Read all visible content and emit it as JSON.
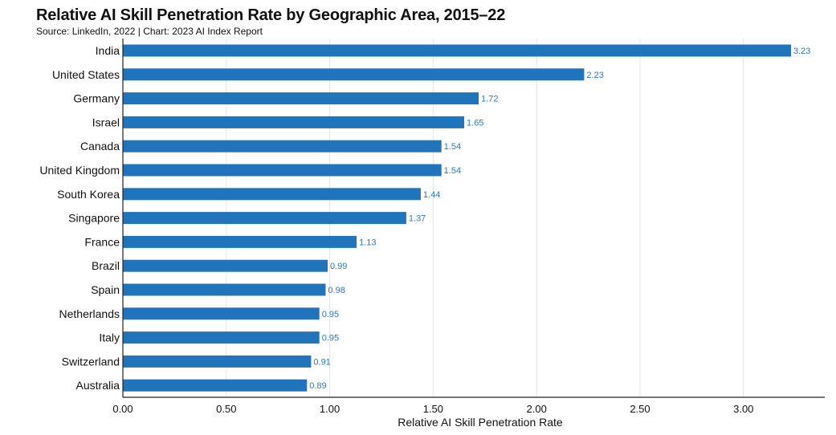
{
  "title": "Relative AI Skill Penetration Rate by Geographic Area, 2015–22",
  "subtitle": "Source: LinkedIn, 2022 | Chart: 2023 AI Index Report",
  "colors": {
    "bar": "#1f74bb",
    "value_label": "#2b78c2"
  },
  "chart_data": {
    "type": "bar",
    "orientation": "horizontal",
    "title": "Relative AI Skill Penetration Rate by Geographic Area, 2015–22",
    "xlabel": "Relative AI Skill Penetration Rate",
    "ylabel": "",
    "xlim": [
      0,
      3.4
    ],
    "xticks": [
      "0.00",
      "0.50",
      "1.00",
      "1.50",
      "2.00",
      "2.50",
      "3.00"
    ],
    "grid": true,
    "legend": "none",
    "categories": [
      "India",
      "United States",
      "Germany",
      "Israel",
      "Canada",
      "United Kingdom",
      "South Korea",
      "Singapore",
      "France",
      "Brazil",
      "Spain",
      "Netherlands",
      "Italy",
      "Switzerland",
      "Australia"
    ],
    "values": [
      3.23,
      2.23,
      1.72,
      1.65,
      1.54,
      1.54,
      1.44,
      1.37,
      1.13,
      0.99,
      0.98,
      0.95,
      0.95,
      0.91,
      0.89
    ]
  }
}
